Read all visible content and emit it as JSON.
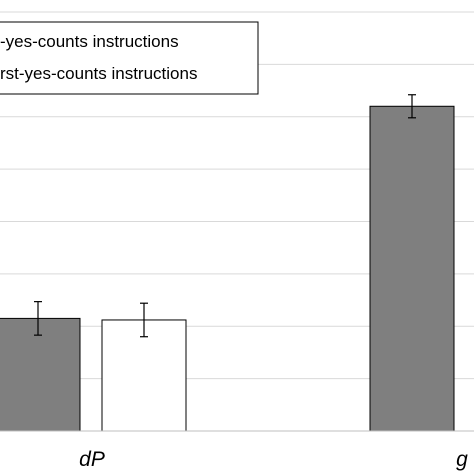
{
  "chart_data": {
    "type": "bar",
    "categories": [
      "dP",
      "g"
    ],
    "series": [
      {
        "name": "first-yes-counts instructions",
        "values": [
          2.15,
          6.2
        ],
        "errors": [
          0.32,
          0.22
        ],
        "color": "#7f7f7f"
      },
      {
        "name": "first-yes-counts instructions",
        "values": [
          2.12,
          null
        ],
        "errors": [
          0.32,
          null
        ],
        "color": "#ffffff"
      }
    ],
    "legend": {
      "placement": "top",
      "entries": [
        "-yes-counts instructions",
        "rst-yes-counts instructions"
      ]
    },
    "ylim": [
      0,
      8
    ],
    "grid": true
  }
}
